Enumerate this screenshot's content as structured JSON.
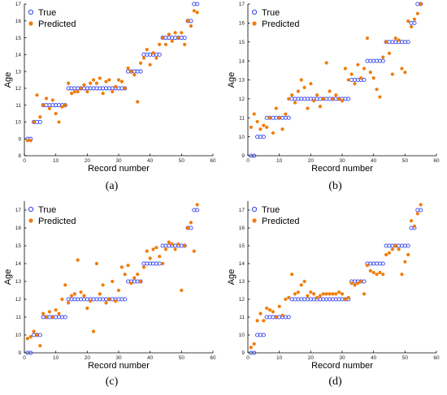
{
  "colors": {
    "true_series": "#2f3ff0",
    "pred_series": "#f07c0c"
  },
  "chart_data": [
    {
      "panel_label": "(a)",
      "type": "scatter",
      "xlabel": "Record number",
      "ylabel": "Age",
      "xlim": [
        0,
        60
      ],
      "ylim": [
        8,
        17
      ],
      "x_ticks": [
        0,
        10,
        20,
        30,
        40,
        50,
        60
      ],
      "y_ticks": [
        8,
        9,
        10,
        11,
        12,
        13,
        14,
        15,
        16,
        17
      ],
      "legend_position": "top-left",
      "series": [
        {
          "name": "True",
          "marker": "open-circle",
          "x": [
            1,
            2,
            3,
            4,
            5,
            6,
            7,
            8,
            9,
            10,
            11,
            12,
            13,
            14,
            15,
            16,
            17,
            18,
            19,
            20,
            21,
            22,
            23,
            24,
            25,
            26,
            27,
            28,
            29,
            30,
            31,
            32,
            33,
            34,
            35,
            36,
            37,
            38,
            39,
            40,
            41,
            42,
            43,
            44,
            45,
            46,
            47,
            48,
            49,
            50,
            51,
            52,
            53,
            54,
            55
          ],
          "y": [
            9,
            9,
            10,
            10,
            10,
            11,
            11,
            11,
            11,
            11,
            11,
            11,
            11,
            12,
            12,
            12,
            12,
            12,
            12,
            12,
            12,
            12,
            12,
            12,
            12,
            12,
            12,
            12,
            12,
            12,
            12,
            12,
            13,
            13,
            13,
            13,
            13,
            14,
            14,
            14,
            14,
            14,
            14,
            15,
            15,
            15,
            15,
            15,
            15,
            15,
            15,
            16,
            16,
            17,
            17
          ]
        },
        {
          "name": "Predicted",
          "marker": "filled-circle",
          "x": [
            1,
            2,
            3,
            4,
            5,
            6,
            7,
            8,
            9,
            10,
            11,
            12,
            13,
            14,
            15,
            16,
            17,
            18,
            19,
            20,
            21,
            22,
            23,
            24,
            25,
            26,
            27,
            28,
            29,
            30,
            31,
            32,
            33,
            34,
            35,
            36,
            37,
            38,
            39,
            40,
            41,
            42,
            43,
            44,
            45,
            46,
            47,
            48,
            49,
            50,
            51,
            52,
            53,
            54,
            55
          ],
          "y": [
            8.9,
            8.9,
            10.0,
            11.6,
            10.3,
            11.0,
            11.4,
            10.8,
            11.3,
            10.5,
            10.0,
            10.9,
            11.0,
            12.3,
            11.7,
            11.8,
            11.8,
            12.0,
            12.2,
            11.8,
            12.3,
            12.5,
            12.3,
            12.6,
            11.7,
            12.4,
            12.5,
            11.8,
            12.1,
            12.5,
            12.4,
            12.0,
            13.2,
            13.0,
            12.8,
            11.2,
            13.5,
            13.8,
            14.3,
            13.4,
            14.1,
            13.8,
            14.6,
            15.0,
            14.6,
            15.2,
            14.8,
            15.3,
            15.0,
            15.3,
            14.6,
            16.0,
            15.7,
            16.6,
            16.5
          ]
        }
      ]
    },
    {
      "panel_label": "(b)",
      "type": "scatter",
      "xlabel": "Record number",
      "ylabel": "Age",
      "xlim": [
        0,
        60
      ],
      "ylim": [
        9,
        17
      ],
      "x_ticks": [
        0,
        10,
        20,
        30,
        40,
        50,
        60
      ],
      "y_ticks": [
        9,
        10,
        11,
        12,
        13,
        14,
        15,
        16,
        17
      ],
      "legend_position": "top-left",
      "series": [
        {
          "name": "True",
          "marker": "open-circle",
          "x": [
            1,
            2,
            3,
            4,
            5,
            6,
            7,
            8,
            9,
            10,
            11,
            12,
            13,
            14,
            15,
            16,
            17,
            18,
            19,
            20,
            21,
            22,
            23,
            24,
            25,
            26,
            27,
            28,
            29,
            30,
            31,
            32,
            33,
            34,
            35,
            36,
            37,
            38,
            39,
            40,
            41,
            42,
            43,
            44,
            45,
            46,
            47,
            48,
            49,
            50,
            51,
            52,
            53,
            54,
            55
          ],
          "y": [
            9,
            9,
            10,
            10,
            10,
            11,
            11,
            11,
            11,
            11,
            11,
            11,
            11,
            12,
            12,
            12,
            12,
            12,
            12,
            12,
            12,
            12,
            12,
            12,
            12,
            12,
            12,
            12,
            12,
            12,
            12,
            12,
            13,
            13,
            13,
            13,
            13,
            14,
            14,
            14,
            14,
            14,
            14,
            15,
            15,
            15,
            15,
            15,
            15,
            15,
            15,
            16,
            16,
            17,
            17
          ]
        },
        {
          "name": "Predicted",
          "marker": "filled-circle",
          "x": [
            1,
            2,
            3,
            4,
            5,
            6,
            7,
            8,
            9,
            10,
            11,
            12,
            13,
            14,
            15,
            16,
            17,
            18,
            19,
            20,
            21,
            22,
            23,
            24,
            25,
            26,
            27,
            28,
            29,
            30,
            31,
            32,
            33,
            34,
            35,
            36,
            37,
            38,
            39,
            40,
            41,
            42,
            43,
            44,
            45,
            46,
            47,
            48,
            49,
            50,
            51,
            52,
            53,
            54,
            55
          ],
          "y": [
            10.5,
            11.2,
            10.8,
            10.4,
            10.6,
            10.5,
            11.0,
            10.2,
            11.5,
            11.0,
            10.4,
            11.2,
            12.0,
            12.2,
            11.8,
            12.4,
            13.0,
            12.6,
            11.5,
            12.8,
            11.9,
            12.2,
            11.6,
            12.0,
            13.9,
            12.4,
            12.0,
            12.2,
            12.0,
            11.9,
            13.6,
            13.0,
            13.3,
            12.8,
            13.8,
            13.1,
            13.6,
            15.2,
            13.4,
            13.1,
            12.5,
            12.1,
            14.2,
            15.0,
            14.4,
            13.3,
            15.2,
            15.1,
            13.6,
            13.4,
            16.1,
            15.8,
            16.2,
            16.5,
            17.0
          ]
        }
      ]
    },
    {
      "panel_label": "(c)",
      "type": "scatter",
      "xlabel": "Record number",
      "ylabel": "Age",
      "xlim": [
        0,
        60
      ],
      "ylim": [
        9,
        17.5
      ],
      "x_ticks": [
        0,
        10,
        20,
        30,
        40,
        50,
        60
      ],
      "y_ticks": [
        9,
        10,
        11,
        12,
        13,
        14,
        15,
        16,
        17
      ],
      "legend_position": "top-left",
      "series": [
        {
          "name": "True",
          "marker": "open-circle",
          "x": [
            1,
            2,
            3,
            4,
            5,
            6,
            7,
            8,
            9,
            10,
            11,
            12,
            13,
            14,
            15,
            16,
            17,
            18,
            19,
            20,
            21,
            22,
            23,
            24,
            25,
            26,
            27,
            28,
            29,
            30,
            31,
            32,
            33,
            34,
            35,
            36,
            37,
            38,
            39,
            40,
            41,
            42,
            43,
            44,
            45,
            46,
            47,
            48,
            49,
            50,
            51,
            52,
            53,
            54,
            55
          ],
          "y": [
            9,
            9,
            10,
            10,
            10,
            11,
            11,
            11,
            11,
            11,
            11,
            11,
            11,
            12,
            12,
            12,
            12,
            12,
            12,
            12,
            12,
            12,
            12,
            12,
            12,
            12,
            12,
            12,
            12,
            12,
            12,
            12,
            13,
            13,
            13,
            13,
            13,
            14,
            14,
            14,
            14,
            14,
            14,
            15,
            15,
            15,
            15,
            15,
            15,
            15,
            15,
            16,
            16,
            17,
            17
          ]
        },
        {
          "name": "Predicted",
          "marker": "filled-circle",
          "x": [
            1,
            2,
            3,
            4,
            5,
            6,
            7,
            8,
            9,
            10,
            11,
            12,
            13,
            14,
            15,
            16,
            17,
            18,
            19,
            20,
            21,
            22,
            23,
            24,
            25,
            26,
            27,
            28,
            29,
            30,
            31,
            32,
            33,
            34,
            35,
            36,
            37,
            38,
            39,
            40,
            41,
            42,
            43,
            44,
            45,
            46,
            47,
            48,
            49,
            50,
            51,
            52,
            53,
            54,
            55
          ],
          "y": [
            9.8,
            9.9,
            10.2,
            10.0,
            9.4,
            11.2,
            11.0,
            11.3,
            11.0,
            11.4,
            11.2,
            12.0,
            12.8,
            11.8,
            12.2,
            12.3,
            14.2,
            12.4,
            12.2,
            11.5,
            11.9,
            10.2,
            14.0,
            12.3,
            12.8,
            11.8,
            12.0,
            13.0,
            11.9,
            12.5,
            13.8,
            13.4,
            13.9,
            12.9,
            13.2,
            13.4,
            13.0,
            13.8,
            14.7,
            14.3,
            14.8,
            14.9,
            14.4,
            14.0,
            14.8,
            15.2,
            15.1,
            14.8,
            15.1,
            12.5,
            15.0,
            16.0,
            16.3,
            14.7,
            17.3
          ]
        }
      ]
    },
    {
      "panel_label": "(d)",
      "type": "scatter",
      "xlabel": "Record number",
      "ylabel": "Age",
      "xlim": [
        0,
        60
      ],
      "ylim": [
        9,
        17.5
      ],
      "x_ticks": [
        0,
        10,
        20,
        30,
        40,
        50,
        60
      ],
      "y_ticks": [
        9,
        10,
        11,
        12,
        13,
        14,
        15,
        16,
        17
      ],
      "legend_position": "top-left",
      "series": [
        {
          "name": "True",
          "marker": "open-circle",
          "x": [
            1,
            2,
            3,
            4,
            5,
            6,
            7,
            8,
            9,
            10,
            11,
            12,
            13,
            14,
            15,
            16,
            17,
            18,
            19,
            20,
            21,
            22,
            23,
            24,
            25,
            26,
            27,
            28,
            29,
            30,
            31,
            32,
            33,
            34,
            35,
            36,
            37,
            38,
            39,
            40,
            41,
            42,
            43,
            44,
            45,
            46,
            47,
            48,
            49,
            50,
            51,
            52,
            53,
            54,
            55
          ],
          "y": [
            9,
            9,
            10,
            10,
            10,
            11,
            11,
            11,
            11,
            11,
            11,
            11,
            11,
            12,
            12,
            12,
            12,
            12,
            12,
            12,
            12,
            12,
            12,
            12,
            12,
            12,
            12,
            12,
            12,
            12,
            12,
            12,
            13,
            13,
            13,
            13,
            13,
            14,
            14,
            14,
            14,
            14,
            14,
            15,
            15,
            15,
            15,
            15,
            15,
            15,
            15,
            16,
            16,
            17,
            17
          ]
        },
        {
          "name": "Predicted",
          "marker": "filled-circle",
          "x": [
            1,
            2,
            3,
            4,
            5,
            6,
            7,
            8,
            9,
            10,
            11,
            12,
            13,
            14,
            15,
            16,
            17,
            18,
            19,
            20,
            21,
            22,
            23,
            24,
            25,
            26,
            27,
            28,
            29,
            30,
            31,
            32,
            33,
            34,
            35,
            36,
            37,
            38,
            39,
            40,
            41,
            42,
            43,
            44,
            45,
            46,
            47,
            48,
            49,
            50,
            51,
            52,
            53,
            54,
            55
          ],
          "y": [
            9.3,
            9.5,
            10.8,
            11.2,
            10.8,
            11.5,
            11.4,
            11.3,
            11.0,
            11.6,
            11.1,
            12.0,
            12.1,
            13.4,
            12.3,
            12.4,
            12.8,
            13.0,
            12.2,
            12.4,
            12.3,
            12.1,
            12.2,
            12.3,
            12.3,
            12.3,
            12.3,
            12.3,
            12.4,
            12.3,
            12.0,
            12.1,
            12.9,
            12.8,
            12.9,
            13.0,
            12.3,
            13.9,
            13.6,
            13.5,
            13.4,
            13.5,
            13.4,
            14.5,
            14.6,
            14.8,
            15.0,
            14.8,
            13.4,
            14.1,
            14.5,
            16.4,
            16.1,
            16.8,
            17.3
          ]
        }
      ]
    }
  ]
}
